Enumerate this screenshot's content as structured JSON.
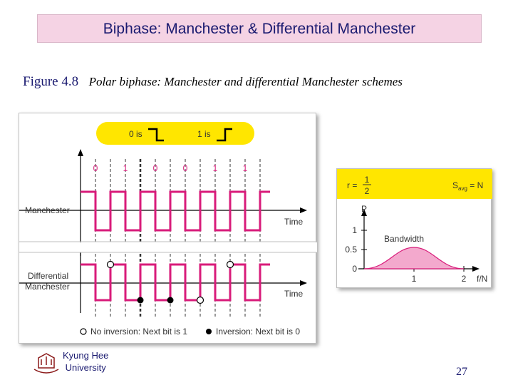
{
  "slide": {
    "title": "Biphase: Manchester & Differential Manchester",
    "figure_number": "Figure 4.8",
    "figure_caption": "Polar biphase: Manchester and differential Manchester schemes",
    "page_number": "27"
  },
  "legend": {
    "zero_label": "0 is",
    "one_label": "1 is"
  },
  "bits": [
    "0",
    "1",
    "0",
    "0",
    "1",
    "1"
  ],
  "signals": {
    "manchester_label": "Manchester",
    "differential_label_line1": "Differential",
    "differential_label_line2": "Manchester",
    "time_label": "Time"
  },
  "footer_legend": {
    "no_inversion": "No inversion: Next bit is 1",
    "inversion": "Inversion: Next bit is 0"
  },
  "bandwidth": {
    "r_label": "r =",
    "r_num": "1",
    "r_den": "2",
    "savg_label": "S",
    "savg_sub": "avg",
    "savg_rest": " = N",
    "p_label": "P",
    "bandwidth_label": "Bandwidth",
    "y_ticks": [
      "1",
      "0.5",
      "0"
    ],
    "x_ticks": [
      "1",
      "2"
    ],
    "x_axis_label": "f/N"
  },
  "university": {
    "line1": "Kyung Hee",
    "line2": "University"
  },
  "colors": {
    "title_bg": "#f5d3e4",
    "signal": "#d81b7a",
    "legend_bg": "#ffe600",
    "dash": "#333333"
  }
}
